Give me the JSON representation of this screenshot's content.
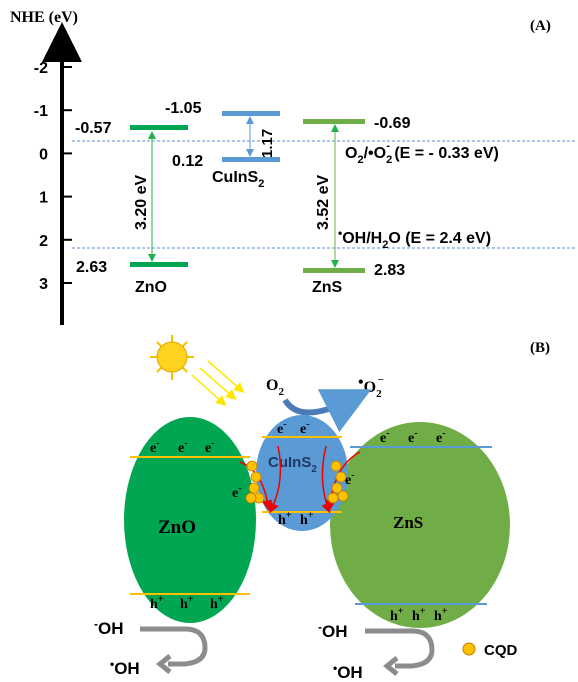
{
  "panel_a": {
    "label": "(A)",
    "axis_title": "NHE (eV)",
    "ticks": [
      "-2",
      "-1",
      "0",
      "1",
      "2",
      "3"
    ],
    "zno": {
      "cb": "-0.57",
      "vb": "2.63",
      "gap": "3.20 eV",
      "name": "ZnO"
    },
    "cuins2": {
      "cb": "-1.05",
      "vb": "0.12",
      "gap": "1.17",
      "name": "CuInS",
      "name_sub": "2"
    },
    "zns": {
      "cb": "-0.69",
      "vb": "2.83",
      "gap": "3.52 eV",
      "name": "ZnS"
    },
    "o2_couple": [
      "O",
      "2",
      "/•O",
      "2",
      "-",
      " (E = - 0.33 eV)"
    ],
    "oh_couple": [
      "•",
      "OH/H",
      "2",
      "O  (E = 2.4 eV)"
    ]
  },
  "panel_b": {
    "label": "(B)",
    "o2": [
      "O",
      "2"
    ],
    "superoxide": [
      "•",
      "O",
      "2",
      "−"
    ],
    "zno": "ZnO",
    "zns": "ZnS",
    "cuins2": [
      "CuInS",
      "2"
    ],
    "electron": "e",
    "electron_sign": "-",
    "hole": "h",
    "hole_sign": "+",
    "hydroxide": [
      "-",
      "OH"
    ],
    "radical": [
      "•",
      "OH"
    ],
    "legend": "CQD"
  }
}
